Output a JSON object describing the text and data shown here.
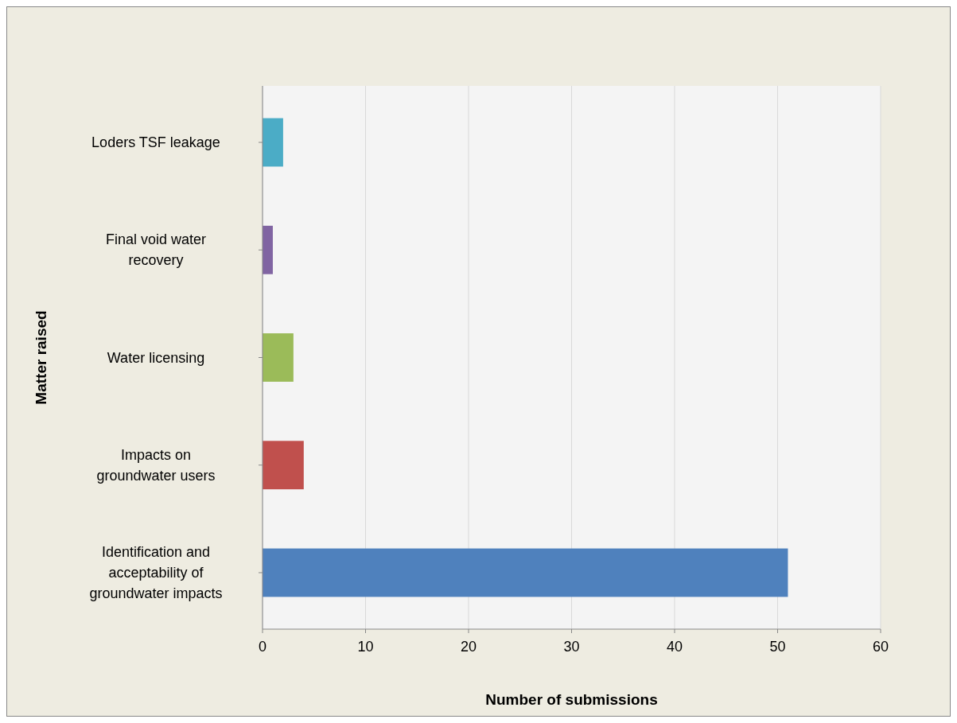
{
  "chart_data": {
    "type": "bar",
    "orientation": "horizontal",
    "xlabel": "Number of submissions",
    "ylabel": "Matter raised",
    "categories": [
      "Loders TSF leakage",
      "Final void water recovery",
      "Water licensing",
      "Impacts on groundwater users",
      "Identification and acceptability of groundwater impacts"
    ],
    "values": [
      2,
      1,
      3,
      4,
      51
    ],
    "colors": [
      "#4bacc6",
      "#8064a2",
      "#9bbb59",
      "#c0504d",
      "#4f81bd"
    ],
    "xlim": [
      0,
      60
    ],
    "xticks": [
      0,
      10,
      20,
      30,
      40,
      50,
      60
    ],
    "grid": "x"
  }
}
